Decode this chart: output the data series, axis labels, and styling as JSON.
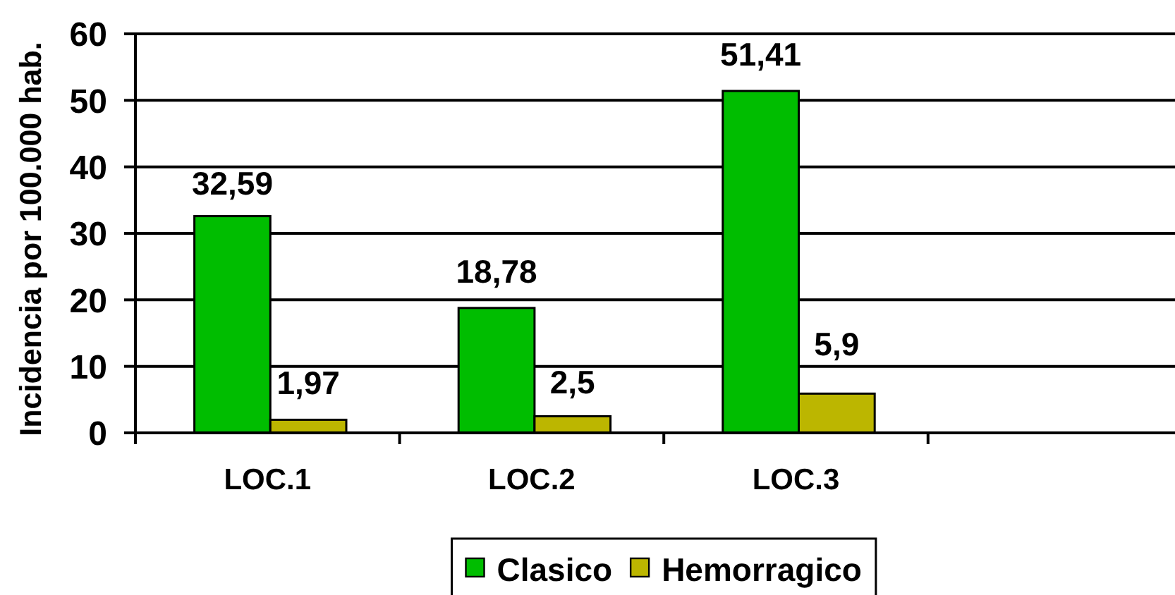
{
  "chart_data": {
    "type": "bar",
    "ylabel": "Incidencia por 100.000 hab.",
    "categories": [
      "LOC.1",
      "LOC.2",
      "LOC.3",
      null
    ],
    "series": [
      {
        "name": "Clasico",
        "color": "#00bd00",
        "values": [
          32.59,
          18.78,
          51.41,
          null
        ],
        "value_labels": [
          "32,59",
          "18,78",
          "51,41",
          null
        ]
      },
      {
        "name": "Hemorragico",
        "color": "#bcb600",
        "values": [
          1.97,
          2.5,
          5.9,
          null
        ],
        "value_labels": [
          "1,97",
          "2,5",
          "5,9",
          null
        ]
      }
    ],
    "ylim": [
      0,
      60
    ],
    "yticks": [
      0,
      10,
      20,
      30,
      40,
      50,
      60
    ],
    "grid": "y",
    "legend": "bottom"
  }
}
